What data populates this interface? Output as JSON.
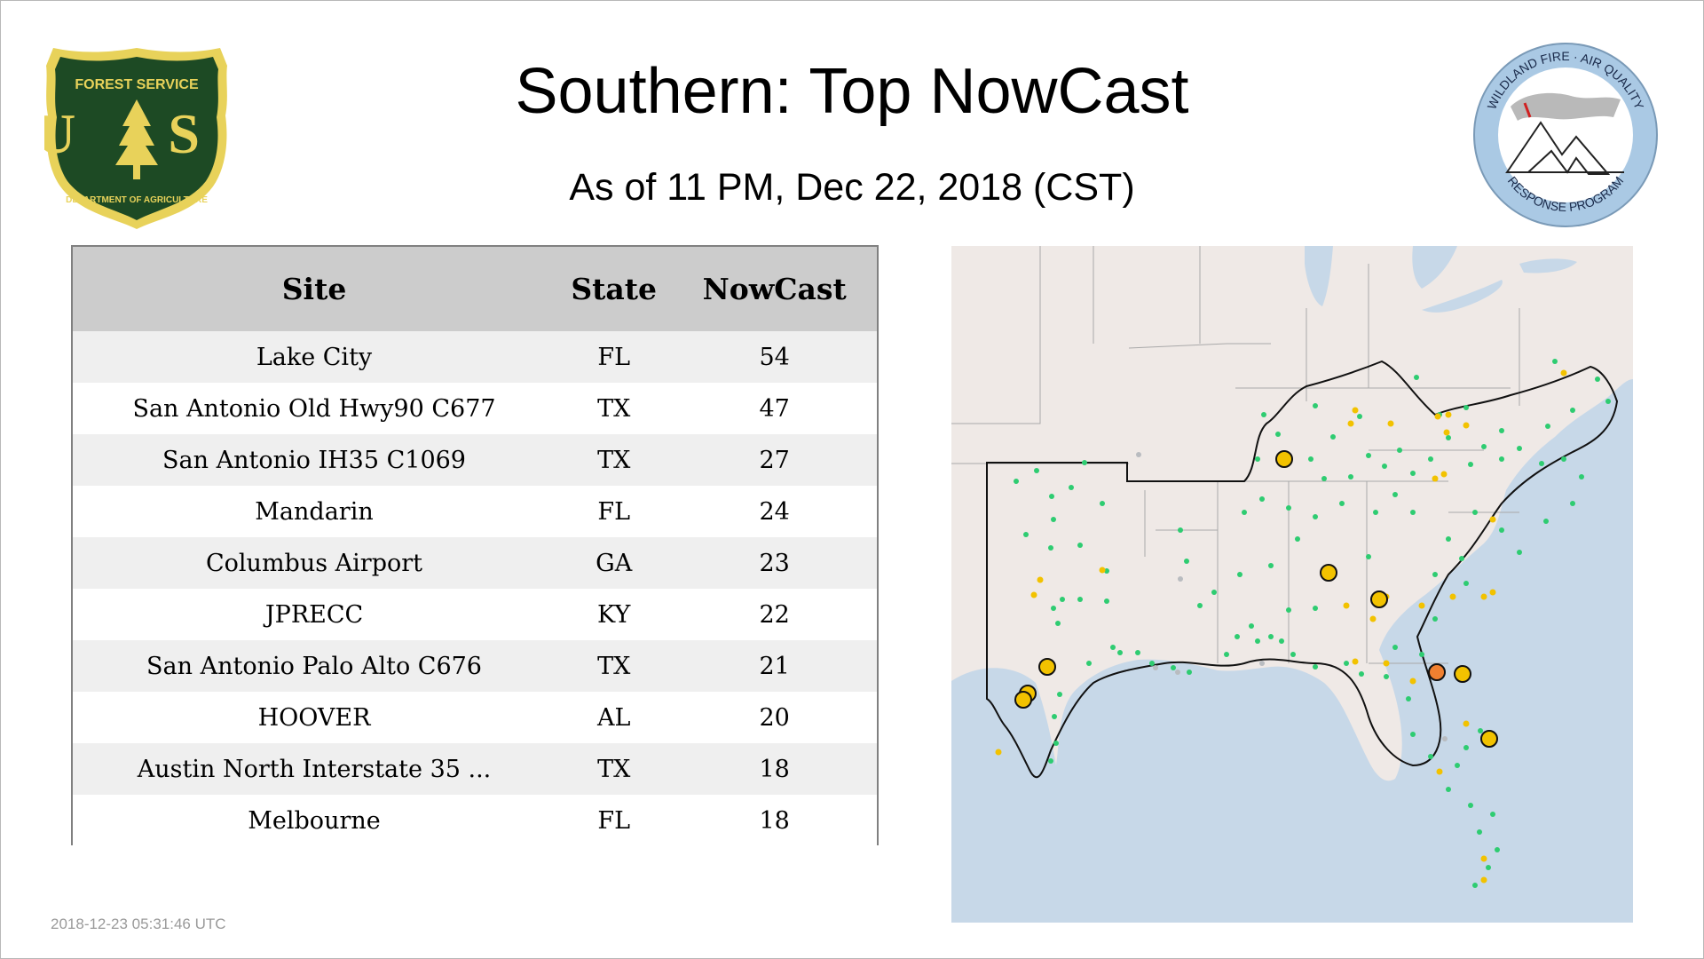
{
  "header": {
    "title": "Southern: Top NowCast",
    "subtitle": "As of 11 PM, Dec 22, 2018 (CST)"
  },
  "logos": {
    "forest_service": {
      "top_text": "FOREST SERVICE",
      "letters": "U S",
      "bottom_text": "DEPARTMENT OF AGRICULTURE"
    },
    "wildland": {
      "top_text": "WILDLAND FIRE · AIR QUALITY",
      "bottom_text": "RESPONSE PROGRAM"
    }
  },
  "table": {
    "columns": [
      "Site",
      "State",
      "NowCast"
    ],
    "rows": [
      [
        "Lake City",
        "FL",
        "54"
      ],
      [
        "San Antonio Old Hwy90 C677",
        "TX",
        "47"
      ],
      [
        "San Antonio IH35 C1069",
        "TX",
        "27"
      ],
      [
        "Mandarin",
        "FL",
        "24"
      ],
      [
        "Columbus Airport",
        "GA",
        "23"
      ],
      [
        "JPRECC",
        "KY",
        "22"
      ],
      [
        "San Antonio Palo Alto C676",
        "TX",
        "21"
      ],
      [
        "HOOVER",
        "AL",
        "20"
      ],
      [
        "Austin North Interstate 35 ...",
        "TX",
        "18"
      ],
      [
        "Melbourne",
        "FL",
        "18"
      ]
    ]
  },
  "map": {
    "colors": {
      "land": "#efe9e6",
      "water": "#c7d8e8",
      "good": "#2ecc71",
      "moderate": "#f2c200",
      "usg": "#f08030",
      "nodata": "#b9bcc0"
    }
  },
  "footer": {
    "timestamp": "2018-12-23 05:31:46 UTC"
  }
}
